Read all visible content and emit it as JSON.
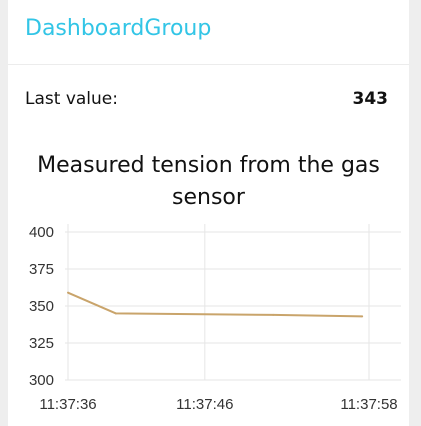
{
  "group": {
    "title": "DashboardGroup"
  },
  "text_widget": {
    "label": "Last value:",
    "value": "343"
  },
  "chart_title": "Measured tension from the gas sensor",
  "colors": {
    "title_accent": "#32c5e6",
    "line": "#c9a46b",
    "grid": "#e6e6e6"
  },
  "chart_data": {
    "type": "line",
    "title": "Measured tension from the gas sensor",
    "xlabel": "",
    "ylabel": "",
    "ylim": [
      300,
      400
    ],
    "yticks": [
      "400",
      "375",
      "350",
      "325",
      "300"
    ],
    "xticks": [
      {
        "t": 0,
        "label": "11:37:36"
      },
      {
        "t": 10,
        "label": "11:37:46"
      },
      {
        "t": 22,
        "label": "11:37:58"
      }
    ],
    "grid": true,
    "series": [
      {
        "x": [
          0,
          3.5,
          15,
          21.5
        ],
        "y": [
          359,
          345,
          344,
          343
        ]
      }
    ]
  }
}
